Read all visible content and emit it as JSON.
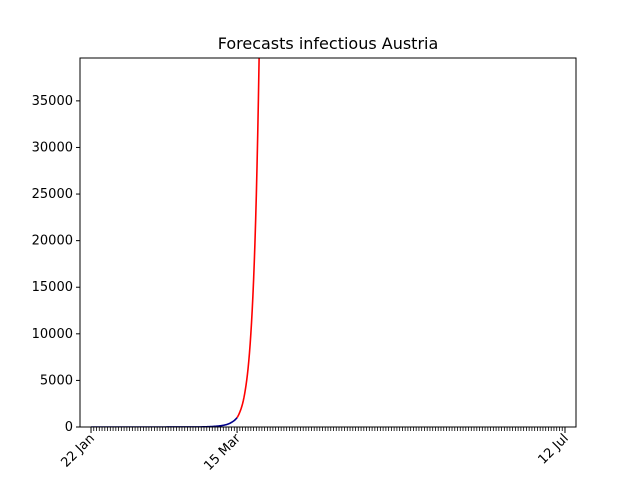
{
  "chart_data": {
    "type": "line",
    "title": "Forecasts infectious Austria",
    "xlabel": "",
    "ylabel": "",
    "x_start": "2020-01-22",
    "x_end": "2020-07-12",
    "xlim": [
      "2020-01-18",
      "2020-07-16"
    ],
    "ylim": [
      0,
      39600
    ],
    "yticks": [
      0,
      5000,
      10000,
      15000,
      20000,
      25000,
      30000,
      35000
    ],
    "xticks": [
      {
        "date": "2020-01-22",
        "label": "22 Jan"
      },
      {
        "date": "2020-03-15",
        "label": "15 Mar"
      },
      {
        "date": "2020-07-12",
        "label": "12 Jul"
      }
    ],
    "minor_ticks": "daily",
    "grid": false,
    "legend": "none",
    "series": [
      {
        "color": "#00008b",
        "points": [
          [
            "2020-01-22",
            0
          ],
          [
            "2020-02-25",
            2
          ],
          [
            "2020-03-01",
            10
          ],
          [
            "2020-03-05",
            40
          ],
          [
            "2020-03-08",
            100
          ],
          [
            "2020-03-10",
            180
          ],
          [
            "2020-03-11",
            250
          ],
          [
            "2020-03-12",
            350
          ],
          [
            "2020-03-13",
            500
          ],
          [
            "2020-03-14",
            700
          ],
          [
            "2020-03-15",
            1000
          ]
        ]
      },
      {
        "color": "#ff0000",
        "points": [
          [
            "2020-03-15",
            1000
          ],
          [
            "2020-03-16",
            1600
          ],
          [
            "2020-03-17",
            2500
          ],
          [
            "2020-03-18",
            4000
          ],
          [
            "2020-03-19",
            6300
          ],
          [
            "2020-03-20",
            10000
          ],
          [
            "2020-03-21",
            15800
          ],
          [
            "2020-03-22",
            25000
          ],
          [
            "2020-03-23",
            39600
          ]
        ]
      }
    ]
  }
}
